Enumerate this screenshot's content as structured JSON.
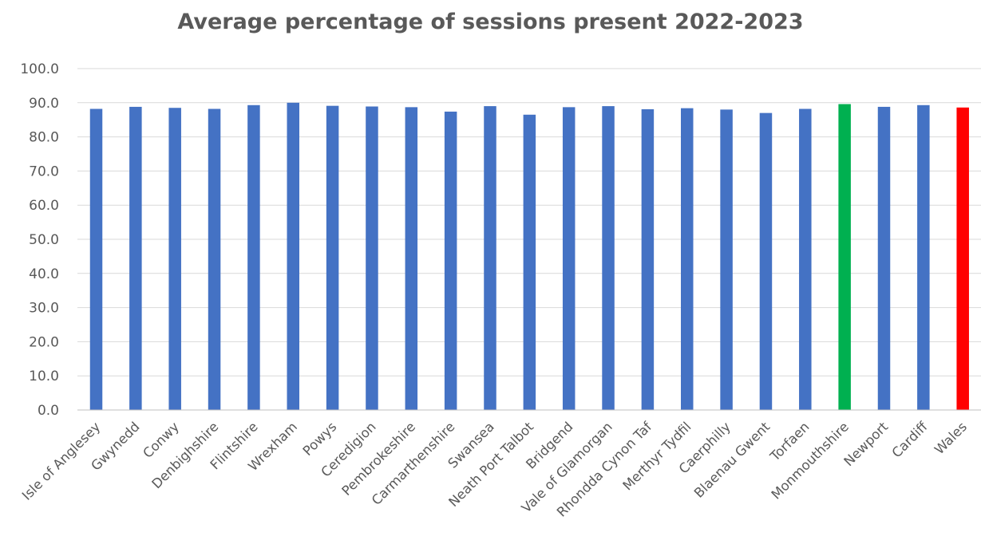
{
  "chart_data": {
    "type": "bar",
    "title": "Average percentage of sessions present 2022-2023",
    "xlabel": "",
    "ylabel": "",
    "ylim": [
      0,
      100
    ],
    "yticks": [
      "0.0",
      "10.0",
      "20.0",
      "30.0",
      "40.0",
      "50.0",
      "60.0",
      "70.0",
      "80.0",
      "90.0",
      "100.0"
    ],
    "grid": true,
    "legend": "none",
    "categories": [
      "Isle of Anglesey",
      "Gwynedd",
      "Conwy",
      "Denbighshire",
      "Flintshire",
      "Wrexham",
      "Powys",
      "Ceredigion",
      "Pembrokeshire",
      "Carmarthenshire",
      "Swansea",
      "Neath Port Talbot",
      "Bridgend",
      "Vale of Glamorgan",
      "Rhondda Cynon Taf",
      "Merthyr Tydfil",
      "Caerphilly",
      "Blaenau Gwent",
      "Torfaen",
      "Monmouthshire",
      "Newport",
      "Cardiff",
      "Wales"
    ],
    "values": [
      88.2,
      88.8,
      88.5,
      88.2,
      89.3,
      90.0,
      89.1,
      88.9,
      88.7,
      87.4,
      89.0,
      86.5,
      88.7,
      89.0,
      88.1,
      88.4,
      88.0,
      87.0,
      88.2,
      89.6,
      88.8,
      89.3,
      88.6
    ],
    "colors": {
      "default": "#4472c4",
      "highlight": "#00b050",
      "total": "#ff0000"
    },
    "highlight_category": "Monmouthshire",
    "total_category": "Wales"
  }
}
